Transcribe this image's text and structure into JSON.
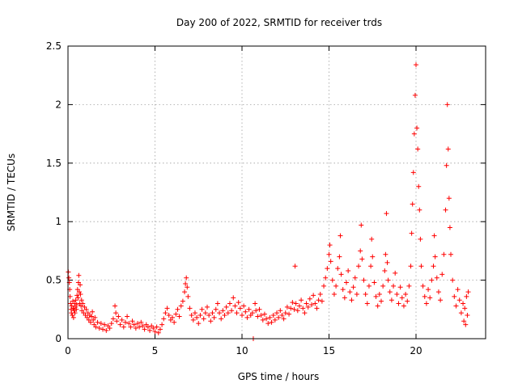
{
  "chart_data": {
    "type": "scatter",
    "title": "Day 200 of 2022, SRMTID for receiver trds",
    "xlabel": "GPS time / hours",
    "ylabel": "SRMTID / TECUs",
    "xlim": [
      0,
      24
    ],
    "ylim": [
      0,
      2.5
    ],
    "xticks": [
      0,
      5,
      10,
      15,
      20
    ],
    "xtick_labels": [
      "0",
      "5",
      "10",
      "15",
      "20"
    ],
    "yticks": [
      0,
      0.5,
      1,
      1.5,
      2,
      2.5
    ],
    "ytick_labels": [
      "0",
      "0.5",
      "1",
      "1.5",
      "2",
      "2.5"
    ],
    "grid": true,
    "marker": "plus",
    "series": [
      {
        "name": "SRMTID",
        "color": "#ff0000",
        "points": [
          [
            0.02,
            0.57
          ],
          [
            0.05,
            0.52
          ],
          [
            0.08,
            0.48
          ],
          [
            0.1,
            0.42
          ],
          [
            0.12,
            0.36
          ],
          [
            0.15,
            0.3
          ],
          [
            0.18,
            0.25
          ],
          [
            0.2,
            0.22
          ],
          [
            0.22,
            0.28
          ],
          [
            0.25,
            0.2
          ],
          [
            0.28,
            0.32
          ],
          [
            0.3,
            0.26
          ],
          [
            0.32,
            0.18
          ],
          [
            0.35,
            0.24
          ],
          [
            0.38,
            0.3
          ],
          [
            0.4,
            0.22
          ],
          [
            0.42,
            0.27
          ],
          [
            0.45,
            0.33
          ],
          [
            0.48,
            0.25
          ],
          [
            0.5,
            0.29
          ],
          [
            0.52,
            0.37
          ],
          [
            0.55,
            0.42
          ],
          [
            0.58,
            0.35
          ],
          [
            0.6,
            0.48
          ],
          [
            0.62,
            0.54
          ],
          [
            0.65,
            0.4
          ],
          [
            0.68,
            0.3
          ],
          [
            0.7,
            0.46
          ],
          [
            0.72,
            0.38
          ],
          [
            0.75,
            0.28
          ],
          [
            0.78,
            0.33
          ],
          [
            0.8,
            0.24
          ],
          [
            0.85,
            0.3
          ],
          [
            0.9,
            0.22
          ],
          [
            0.95,
            0.27
          ],
          [
            1.0,
            0.2
          ],
          [
            1.05,
            0.25
          ],
          [
            1.1,
            0.18
          ],
          [
            1.15,
            0.22
          ],
          [
            1.2,
            0.16
          ],
          [
            1.25,
            0.2
          ],
          [
            1.3,
            0.14
          ],
          [
            1.35,
            0.19
          ],
          [
            1.4,
            0.23
          ],
          [
            1.45,
            0.16
          ],
          [
            1.5,
            0.12
          ],
          [
            1.55,
            0.18
          ],
          [
            1.6,
            0.1
          ],
          [
            1.7,
            0.14
          ],
          [
            1.8,
            0.09
          ],
          [
            1.9,
            0.13
          ],
          [
            2.0,
            0.08
          ],
          [
            2.1,
            0.12
          ],
          [
            2.2,
            0.07
          ],
          [
            2.3,
            0.11
          ],
          [
            2.4,
            0.09
          ],
          [
            2.5,
            0.13
          ],
          [
            2.6,
            0.17
          ],
          [
            2.7,
            0.28
          ],
          [
            2.75,
            0.22
          ],
          [
            2.8,
            0.15
          ],
          [
            2.9,
            0.19
          ],
          [
            3.0,
            0.12
          ],
          [
            3.1,
            0.16
          ],
          [
            3.2,
            0.1
          ],
          [
            3.3,
            0.14
          ],
          [
            3.4,
            0.19
          ],
          [
            3.5,
            0.13
          ],
          [
            3.6,
            0.1
          ],
          [
            3.7,
            0.15
          ],
          [
            3.8,
            0.12
          ],
          [
            3.9,
            0.09
          ],
          [
            4.0,
            0.13
          ],
          [
            4.1,
            0.1
          ],
          [
            4.2,
            0.14
          ],
          [
            4.3,
            0.11
          ],
          [
            4.4,
            0.08
          ],
          [
            4.5,
            0.12
          ],
          [
            4.6,
            0.1
          ],
          [
            4.7,
            0.07
          ],
          [
            4.8,
            0.11
          ],
          [
            4.9,
            0.09
          ],
          [
            5.0,
            0.06
          ],
          [
            5.1,
            0.1
          ],
          [
            5.2,
            0.05
          ],
          [
            5.3,
            0.08
          ],
          [
            5.4,
            0.12
          ],
          [
            5.5,
            0.17
          ],
          [
            5.6,
            0.22
          ],
          [
            5.7,
            0.26
          ],
          [
            5.8,
            0.2
          ],
          [
            5.9,
            0.16
          ],
          [
            6.0,
            0.18
          ],
          [
            6.1,
            0.14
          ],
          [
            6.2,
            0.21
          ],
          [
            6.3,
            0.25
          ],
          [
            6.4,
            0.19
          ],
          [
            6.5,
            0.28
          ],
          [
            6.6,
            0.32
          ],
          [
            6.7,
            0.4
          ],
          [
            6.75,
            0.47
          ],
          [
            6.8,
            0.52
          ],
          [
            6.85,
            0.44
          ],
          [
            6.9,
            0.36
          ],
          [
            7.0,
            0.26
          ],
          [
            7.1,
            0.2
          ],
          [
            7.2,
            0.16
          ],
          [
            7.3,
            0.22
          ],
          [
            7.4,
            0.18
          ],
          [
            7.5,
            0.13
          ],
          [
            7.6,
            0.2
          ],
          [
            7.7,
            0.25
          ],
          [
            7.8,
            0.17
          ],
          [
            7.9,
            0.22
          ],
          [
            8.0,
            0.27
          ],
          [
            8.1,
            0.2
          ],
          [
            8.2,
            0.15
          ],
          [
            8.3,
            0.22
          ],
          [
            8.4,
            0.18
          ],
          [
            8.5,
            0.25
          ],
          [
            8.6,
            0.3
          ],
          [
            8.7,
            0.22
          ],
          [
            8.8,
            0.17
          ],
          [
            8.9,
            0.24
          ],
          [
            9.0,
            0.2
          ],
          [
            9.1,
            0.27
          ],
          [
            9.2,
            0.22
          ],
          [
            9.3,
            0.3
          ],
          [
            9.4,
            0.24
          ],
          [
            9.5,
            0.35
          ],
          [
            9.6,
            0.28
          ],
          [
            9.7,
            0.22
          ],
          [
            9.8,
            0.31
          ],
          [
            9.9,
            0.26
          ],
          [
            10.0,
            0.2
          ],
          [
            10.1,
            0.28
          ],
          [
            10.2,
            0.23
          ],
          [
            10.3,
            0.18
          ],
          [
            10.4,
            0.25
          ],
          [
            10.5,
            0.2
          ],
          [
            10.6,
            0.22
          ],
          [
            10.65,
            0.0
          ],
          [
            10.75,
            0.3
          ],
          [
            10.8,
            0.24
          ],
          [
            10.9,
            0.19
          ],
          [
            11.0,
            0.25
          ],
          [
            11.1,
            0.2
          ],
          [
            11.2,
            0.16
          ],
          [
            11.3,
            0.21
          ],
          [
            11.4,
            0.17
          ],
          [
            11.5,
            0.13
          ],
          [
            11.6,
            0.18
          ],
          [
            11.7,
            0.14
          ],
          [
            11.8,
            0.2
          ],
          [
            11.9,
            0.16
          ],
          [
            12.0,
            0.22
          ],
          [
            12.1,
            0.18
          ],
          [
            12.2,
            0.24
          ],
          [
            12.3,
            0.2
          ],
          [
            12.4,
            0.17
          ],
          [
            12.5,
            0.22
          ],
          [
            12.6,
            0.27
          ],
          [
            12.7,
            0.21
          ],
          [
            12.8,
            0.26
          ],
          [
            12.9,
            0.31
          ],
          [
            13.0,
            0.25
          ],
          [
            13.05,
            0.62
          ],
          [
            13.1,
            0.3
          ],
          [
            13.2,
            0.24
          ],
          [
            13.3,
            0.28
          ],
          [
            13.4,
            0.33
          ],
          [
            13.5,
            0.26
          ],
          [
            13.6,
            0.22
          ],
          [
            13.7,
            0.3
          ],
          [
            13.8,
            0.27
          ],
          [
            13.9,
            0.34
          ],
          [
            14.0,
            0.29
          ],
          [
            14.1,
            0.37
          ],
          [
            14.2,
            0.3
          ],
          [
            14.3,
            0.26
          ],
          [
            14.4,
            0.33
          ],
          [
            14.5,
            0.38
          ],
          [
            14.6,
            0.32
          ],
          [
            14.7,
            0.45
          ],
          [
            14.8,
            0.52
          ],
          [
            14.9,
            0.6
          ],
          [
            15.0,
            0.72
          ],
          [
            15.05,
            0.8
          ],
          [
            15.1,
            0.66
          ],
          [
            15.2,
            0.5
          ],
          [
            15.3,
            0.38
          ],
          [
            15.4,
            0.45
          ],
          [
            15.5,
            0.6
          ],
          [
            15.6,
            0.7
          ],
          [
            15.65,
            0.88
          ],
          [
            15.7,
            0.55
          ],
          [
            15.8,
            0.42
          ],
          [
            15.9,
            0.35
          ],
          [
            16.0,
            0.48
          ],
          [
            16.1,
            0.58
          ],
          [
            16.2,
            0.4
          ],
          [
            16.3,
            0.33
          ],
          [
            16.4,
            0.44
          ],
          [
            16.5,
            0.52
          ],
          [
            16.6,
            0.38
          ],
          [
            16.7,
            0.62
          ],
          [
            16.8,
            0.75
          ],
          [
            16.85,
            0.97
          ],
          [
            16.9,
            0.68
          ],
          [
            17.0,
            0.5
          ],
          [
            17.1,
            0.38
          ],
          [
            17.2,
            0.3
          ],
          [
            17.3,
            0.45
          ],
          [
            17.4,
            0.62
          ],
          [
            17.45,
            0.85
          ],
          [
            17.5,
            0.7
          ],
          [
            17.6,
            0.48
          ],
          [
            17.7,
            0.36
          ],
          [
            17.8,
            0.28
          ],
          [
            17.9,
            0.38
          ],
          [
            18.0,
            0.32
          ],
          [
            18.1,
            0.45
          ],
          [
            18.2,
            0.58
          ],
          [
            18.25,
            0.72
          ],
          [
            18.3,
            1.07
          ],
          [
            18.35,
            0.65
          ],
          [
            18.4,
            0.5
          ],
          [
            18.5,
            0.4
          ],
          [
            18.6,
            0.33
          ],
          [
            18.7,
            0.45
          ],
          [
            18.8,
            0.56
          ],
          [
            18.9,
            0.38
          ],
          [
            19.0,
            0.3
          ],
          [
            19.1,
            0.44
          ],
          [
            19.2,
            0.35
          ],
          [
            19.3,
            0.28
          ],
          [
            19.4,
            0.38
          ],
          [
            19.5,
            0.32
          ],
          [
            19.6,
            0.45
          ],
          [
            19.7,
            0.62
          ],
          [
            19.75,
            0.9
          ],
          [
            19.8,
            1.15
          ],
          [
            19.85,
            1.42
          ],
          [
            19.9,
            1.75
          ],
          [
            19.95,
            2.08
          ],
          [
            20.0,
            2.34
          ],
          [
            20.05,
            1.8
          ],
          [
            20.1,
            1.62
          ],
          [
            20.15,
            1.3
          ],
          [
            20.2,
            1.1
          ],
          [
            20.25,
            0.85
          ],
          [
            20.3,
            0.62
          ],
          [
            20.4,
            0.45
          ],
          [
            20.5,
            0.36
          ],
          [
            20.6,
            0.3
          ],
          [
            20.7,
            0.42
          ],
          [
            20.8,
            0.35
          ],
          [
            20.9,
            0.5
          ],
          [
            21.0,
            0.62
          ],
          [
            21.05,
            0.88
          ],
          [
            21.1,
            0.7
          ],
          [
            21.2,
            0.52
          ],
          [
            21.3,
            0.4
          ],
          [
            21.4,
            0.33
          ],
          [
            21.5,
            0.55
          ],
          [
            21.6,
            0.72
          ],
          [
            21.7,
            1.1
          ],
          [
            21.75,
            1.48
          ],
          [
            21.8,
            2.0
          ],
          [
            21.85,
            1.62
          ],
          [
            21.9,
            1.2
          ],
          [
            21.95,
            0.95
          ],
          [
            22.0,
            0.72
          ],
          [
            22.1,
            0.5
          ],
          [
            22.2,
            0.36
          ],
          [
            22.3,
            0.28
          ],
          [
            22.4,
            0.42
          ],
          [
            22.5,
            0.33
          ],
          [
            22.6,
            0.22
          ],
          [
            22.7,
            0.3
          ],
          [
            22.75,
            0.15
          ],
          [
            22.8,
            0.26
          ],
          [
            22.85,
            0.12
          ],
          [
            22.9,
            0.36
          ],
          [
            22.95,
            0.2
          ],
          [
            23.0,
            0.4
          ]
        ]
      }
    ]
  }
}
